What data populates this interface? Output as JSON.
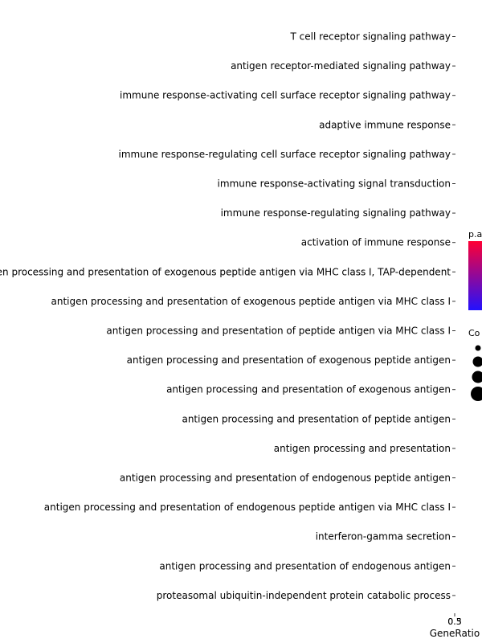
{
  "chart_data": {
    "type": "scatter",
    "categories": [
      "T cell receptor signaling pathway",
      "antigen receptor-mediated signaling pathway",
      "immune response-activating cell surface receptor signaling pathway",
      "adaptive immune response",
      "immune response-regulating cell surface receptor signaling pathway",
      "immune response-activating signal transduction",
      "immune response-regulating signaling pathway",
      "activation of immune response",
      "antigen processing and presentation of exogenous peptide antigen via MHC class I, TAP-dependent",
      "antigen processing and presentation of exogenous peptide antigen via MHC class I",
      "antigen processing and presentation of peptide antigen via MHC class I",
      "antigen processing and presentation of exogenous peptide antigen",
      "antigen processing and presentation of exogenous antigen",
      "antigen processing and presentation of peptide antigen",
      "antigen processing and presentation",
      "antigen processing and presentation of endogenous peptide antigen",
      "antigen processing and presentation of endogenous peptide antigen via MHC class I",
      "interferon-gamma secretion",
      "antigen processing and presentation of endogenous antigen",
      "proteasomal ubiquitin-independent protein catabolic process"
    ],
    "x_ticks": [
      "0.3",
      "0.5"
    ],
    "xlabel": "GeneRatio",
    "legend_color": {
      "title": "p.a",
      "colors": [
        "#ff0033",
        "#2211ff"
      ]
    },
    "legend_size": {
      "title": "Co"
    }
  }
}
